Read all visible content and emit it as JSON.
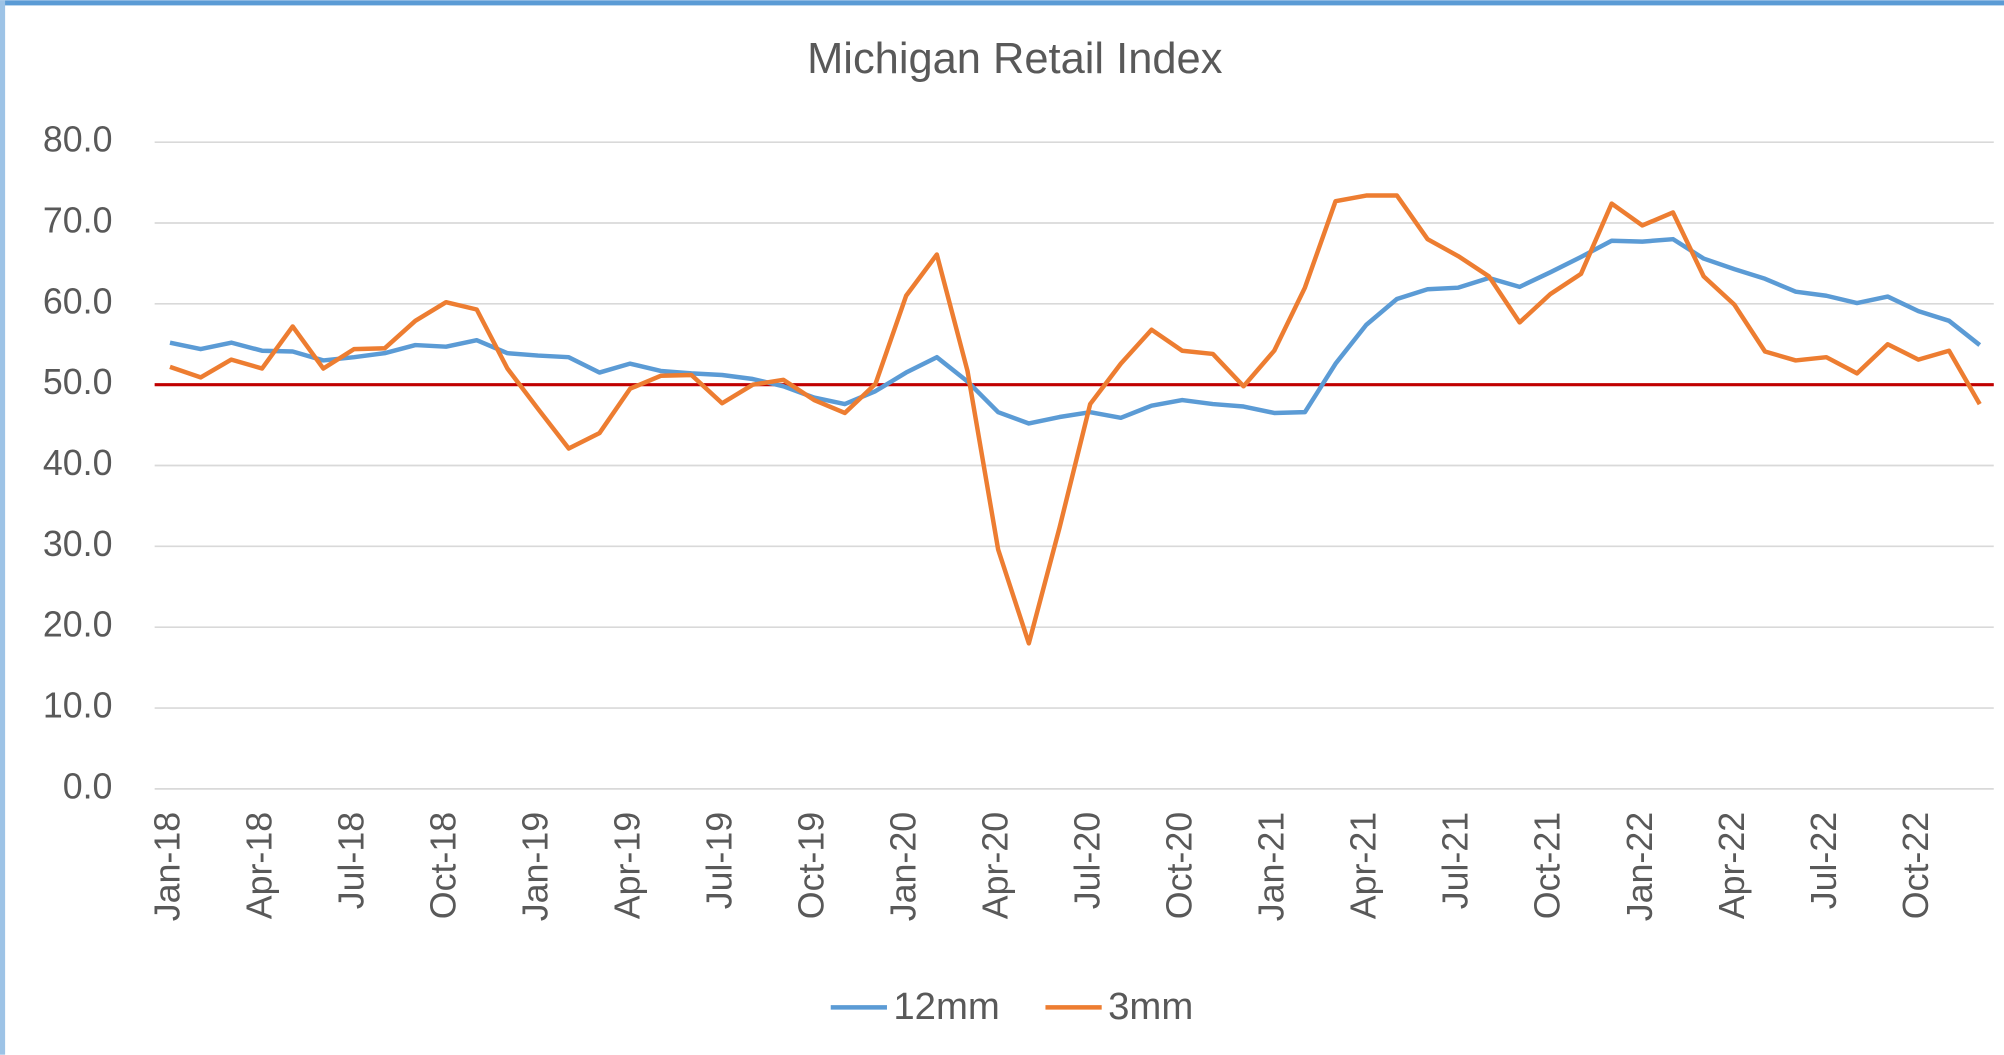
{
  "chart_data": {
    "type": "line",
    "title": "Michigan Retail Index",
    "categories": [
      "Jan-18",
      null,
      null,
      "Apr-18",
      null,
      null,
      "Jul-18",
      null,
      null,
      "Oct-18",
      null,
      null,
      "Jan-19",
      null,
      null,
      "Apr-19",
      null,
      null,
      "Jul-19",
      null,
      null,
      "Oct-19",
      null,
      null,
      "Jan-20",
      null,
      null,
      "Apr-20",
      null,
      null,
      "Jul-20",
      null,
      null,
      "Oct-20",
      null,
      null,
      "Jan-21",
      null,
      null,
      "Apr-21",
      null,
      null,
      "Jul-21",
      null,
      null,
      "Oct-21",
      null,
      null,
      "Jan-22",
      null,
      null,
      "Apr-22",
      null,
      null,
      "Jul-22",
      null,
      null,
      "Oct-22",
      null,
      null
    ],
    "series": [
      {
        "name": "12mm",
        "color": "#5b9bd5",
        "values": [
          55.2,
          54.4,
          55.2,
          54.2,
          54.1,
          53.0,
          53.4,
          53.9,
          54.9,
          54.7,
          55.5,
          53.9,
          53.6,
          53.4,
          51.5,
          52.6,
          51.7,
          51.4,
          51.2,
          50.7,
          49.8,
          48.4,
          47.6,
          49.2,
          51.5,
          53.4,
          50.4,
          46.6,
          45.2,
          46.0,
          46.6,
          45.9,
          47.4,
          48.1,
          47.6,
          47.3,
          46.5,
          46.6,
          52.6,
          57.4,
          60.6,
          61.8,
          62.0,
          63.2,
          62.1,
          63.9,
          65.8,
          67.8,
          67.7,
          68.0,
          65.6,
          64.3,
          63.1,
          61.5,
          61.0,
          60.1,
          60.9,
          59.1,
          57.9,
          54.9
        ]
      },
      {
        "name": "3mm",
        "color": "#ed7d31",
        "values": [
          52.2,
          50.9,
          53.1,
          52.0,
          57.2,
          52.0,
          54.4,
          54.5,
          57.9,
          60.2,
          59.3,
          52.0,
          47.0,
          42.1,
          44.0,
          49.5,
          51.1,
          51.2,
          47.7,
          50.0,
          50.6,
          48.1,
          46.5,
          50.1,
          61.0,
          66.1,
          51.7,
          29.6,
          18.0,
          32.3,
          47.6,
          52.6,
          56.8,
          54.2,
          53.8,
          49.8,
          54.2,
          62.0,
          72.7,
          73.4,
          73.4,
          68.0,
          65.9,
          63.4,
          57.7,
          61.2,
          63.7,
          72.4,
          69.7,
          71.3,
          63.4,
          59.9,
          54.1,
          53.0,
          53.4,
          51.4,
          55.0,
          53.1,
          54.2,
          47.6
        ]
      }
    ],
    "ylim": [
      0,
      80
    ],
    "yticks": [
      {
        "value": 0,
        "label": "0.0"
      },
      {
        "value": 10,
        "label": "10.0"
      },
      {
        "value": 20,
        "label": "20.0"
      },
      {
        "value": 30,
        "label": "30.0"
      },
      {
        "value": 40,
        "label": "40.0"
      },
      {
        "value": 50,
        "label": "50.0"
      },
      {
        "value": 60,
        "label": "60.0"
      },
      {
        "value": 70,
        "label": "70.0"
      },
      {
        "value": 80,
        "label": "80.0"
      }
    ],
    "grid": true,
    "hline": {
      "value": 50,
      "color": "#c00000"
    },
    "legend": "bottom"
  }
}
